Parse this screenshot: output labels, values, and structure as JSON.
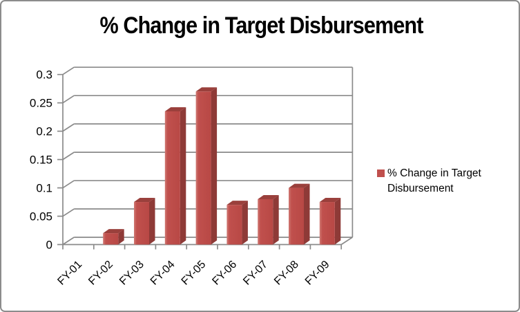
{
  "chart_data": {
    "type": "bar",
    "style": "3d-column",
    "title": "% Change in Target Disbursement",
    "legend": "% Change in Target Disbursement",
    "legend_position": "right",
    "categories": [
      "FY-01",
      "FY-02",
      "FY-03",
      "FY-04",
      "FY-05",
      "FY-06",
      "FY-07",
      "FY-08",
      "FY-09"
    ],
    "values": [
      0,
      0.02,
      0.075,
      0.235,
      0.27,
      0.07,
      0.08,
      0.1,
      0.075
    ],
    "xlabel": "",
    "ylabel": "",
    "ylim": [
      0,
      0.3
    ],
    "yticks": [
      {
        "v": 0,
        "label": "0"
      },
      {
        "v": 0.05,
        "label": "0.05"
      },
      {
        "v": 0.1,
        "label": "0.1"
      },
      {
        "v": 0.15,
        "label": "0.15"
      },
      {
        "v": 0.2,
        "label": "0.2"
      },
      {
        "v": 0.25,
        "label": "0.25"
      },
      {
        "v": 0.3,
        "label": "0.3"
      }
    ],
    "grid": true,
    "colors": {
      "bar_front": "#C0504D",
      "bar_front_highlight": "#D07A74",
      "bar_front_shade": "#B84845",
      "bar_top": "#9A403C",
      "bar_side": "#8E3A37",
      "gridline": "#8A8A8A",
      "axis": "#8A8A8A",
      "frame_border": "#8C8C8C",
      "text": "#000000",
      "background": "#FFFFFF"
    }
  }
}
